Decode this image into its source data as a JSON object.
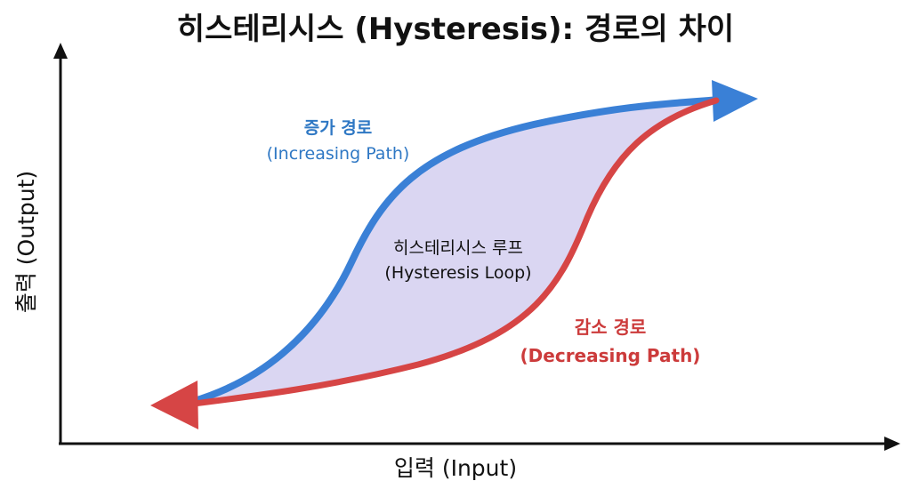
{
  "title": "히스테리시스 (Hysteresis): 경로의 차이",
  "axes": {
    "x_label": "입력 (Input)",
    "y_label": "출력 (Output)"
  },
  "increasing_path": {
    "label_kr": "증가 경로",
    "label_en": "(Increasing Path)",
    "color": "#3a80d6"
  },
  "decreasing_path": {
    "label_kr": "감소 경로",
    "label_en": "(Decreasing Path)",
    "color": "#d64545"
  },
  "loop": {
    "label_kr": "히스테리시스 루프",
    "label_en": "(Hysteresis Loop)",
    "fill_color": "#d6d2f0"
  },
  "axis_color": "#111111"
}
